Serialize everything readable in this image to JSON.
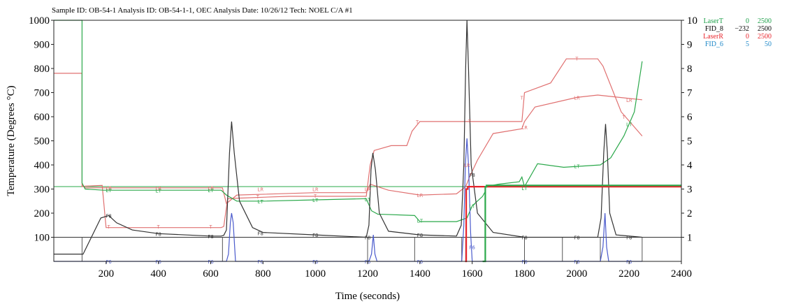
{
  "header": "Sample ID: OB-54-1    Analysis ID: OB-54-1-1, OEC    Analysis Date: 10/26/12    Tech: NOEL    C/A #1",
  "chart_data": {
    "type": "line",
    "xlabel": "Time (seconds)",
    "ylabel": "Temperature (Degrees °C)",
    "xlim": [
      0,
      2400
    ],
    "ylim": [
      0,
      1000
    ],
    "y2lim": [
      0,
      10
    ],
    "x_ticks": [
      200,
      400,
      600,
      800,
      1000,
      1200,
      1400,
      1600,
      1800,
      2000,
      2200,
      2400
    ],
    "y_ticks": [
      100,
      200,
      300,
      400,
      500,
      600,
      700,
      800,
      900,
      1000
    ],
    "y2_ticks": [
      1,
      2,
      3,
      4,
      5,
      6,
      7,
      8,
      9,
      10
    ],
    "grid": false,
    "legend_position": "top-right",
    "legend": [
      {
        "name": "LaserT",
        "min": "0",
        "max": "2500",
        "color": "#1ea04a"
      },
      {
        "name": "FID_8",
        "min": "−232",
        "max": "2500",
        "color": "#000000"
      },
      {
        "name": "LaserR",
        "min": "0",
        "max": "2500",
        "color": "#e8242b"
      },
      {
        "name": "FID_6",
        "min": "5",
        "max": "50",
        "color": "#1e88c8"
      }
    ],
    "series": [
      {
        "name": "T",
        "axis": "left",
        "color": "#e07070",
        "x": [
          0,
          108,
          108,
          120,
          185,
          200,
          640,
          650,
          665,
          700,
          900,
          1195,
          1210,
          1225,
          1290,
          1350,
          1370,
          1400,
          1600,
          1790,
          1800,
          1900,
          1960,
          2080,
          2100,
          2170,
          2250
        ],
        "y": [
          780,
          780,
          310,
          312,
          315,
          140,
          140,
          145,
          260,
          262,
          270,
          270,
          400,
          460,
          480,
          480,
          540,
          580,
          580,
          580,
          700,
          740,
          840,
          840,
          810,
          620,
          520
        ],
        "labels": [
          [
            210,
            145
          ],
          [
            400,
            145
          ],
          [
            600,
            145
          ],
          [
            780,
            270
          ],
          [
            1000,
            272
          ],
          [
            1390,
            580
          ],
          [
            1590,
            582
          ],
          [
            1790,
            680
          ],
          [
            2000,
            842
          ],
          [
            2180,
            600
          ]
        ]
      },
      {
        "name": "LR",
        "axis": "left",
        "color": "#e07070",
        "x": [
          108,
          120,
          190,
          645,
          660,
          700,
          1000,
          1195,
          1210,
          1280,
          1400,
          1540,
          1575,
          1590,
          1620,
          1680,
          1790,
          1800,
          1840,
          2000,
          2080,
          2250
        ],
        "y": [
          315,
          305,
          305,
          305,
          240,
          275,
          285,
          285,
          320,
          295,
          275,
          280,
          310,
          350,
          420,
          530,
          550,
          580,
          640,
          680,
          690,
          670
        ],
        "labels": [
          [
            210,
            306
          ],
          [
            400,
            305
          ],
          [
            600,
            306
          ],
          [
            790,
            300
          ],
          [
            1000,
            300
          ],
          [
            1200,
            300
          ],
          [
            1400,
            275
          ],
          [
            1580,
            400
          ],
          [
            1800,
            557
          ],
          [
            2000,
            680
          ],
          [
            2200,
            670
          ]
        ]
      },
      {
        "name": "LT",
        "axis": "left",
        "color": "#2aa84a",
        "x": [
          0,
          108,
          108,
          120,
          190,
          640,
          660,
          700,
          800,
          1000,
          1195,
          1215,
          1240,
          1260,
          1380,
          1400,
          1540,
          1580,
          1600,
          1640,
          1650,
          1650,
          1700,
          1780,
          1790,
          1800,
          1850,
          1950,
          2090,
          2130,
          2180,
          2220,
          2250
        ],
        "y": [
          1000,
          1000,
          325,
          300,
          295,
          295,
          275,
          250,
          250,
          255,
          260,
          210,
          195,
          195,
          190,
          165,
          165,
          180,
          230,
          270,
          290,
          310,
          320,
          330,
          350,
          310,
          405,
          390,
          400,
          430,
          520,
          620,
          830
        ],
        "labels": [
          [
            210,
            295
          ],
          [
            400,
            294
          ],
          [
            600,
            295
          ],
          [
            790,
            250
          ],
          [
            1000,
            255
          ],
          [
            1200,
            258
          ],
          [
            1400,
            170
          ],
          [
            1600,
            230
          ],
          [
            1800,
            305
          ],
          [
            2000,
            395
          ],
          [
            2200,
            570
          ]
        ]
      },
      {
        "name": "F8",
        "axis": "left",
        "color": "#333333",
        "x": [
          0,
          112,
          180,
          210,
          240,
          300,
          400,
          600,
          640,
          650,
          660,
          672,
          680,
          690,
          710,
          760,
          800,
          1000,
          1195,
          1205,
          1213,
          1220,
          1230,
          1245,
          1280,
          1400,
          1540,
          1558,
          1568,
          1575,
          1580,
          1586,
          1596,
          1620,
          1680,
          1800,
          2080,
          2093,
          2103,
          2110,
          2117,
          2126,
          2150,
          2250
        ],
        "y": [
          30,
          30,
          180,
          190,
          160,
          130,
          115,
          105,
          105,
          108,
          130,
          450,
          580,
          450,
          250,
          140,
          120,
          110,
          100,
          150,
          380,
          450,
          380,
          200,
          125,
          110,
          105,
          150,
          400,
          800,
          1000,
          800,
          400,
          200,
          120,
          100,
          100,
          180,
          450,
          570,
          450,
          200,
          110,
          100
        ],
        "labels": [
          [
            210,
            190
          ],
          [
            400,
            115
          ],
          [
            600,
            105
          ],
          [
            790,
            118
          ],
          [
            1000,
            110
          ],
          [
            1200,
            100
          ],
          [
            1400,
            110
          ],
          [
            1600,
            360
          ],
          [
            1800,
            100
          ],
          [
            2000,
            100
          ],
          [
            2200,
            100
          ]
        ]
      },
      {
        "name": "F6",
        "axis": "left",
        "color": "#4a5acc",
        "x": [
          0,
          660,
          668,
          675,
          680,
          686,
          695,
          1205,
          1215,
          1222,
          1228,
          1236,
          1560,
          1568,
          1574,
          1580,
          1586,
          1594,
          1600,
          2090,
          2100,
          2108,
          2114,
          2122,
          2250
        ],
        "y": [
          0,
          0,
          30,
          160,
          200,
          160,
          0,
          0,
          30,
          110,
          30,
          0,
          0,
          150,
          400,
          510,
          400,
          120,
          0,
          0,
          60,
          200,
          60,
          0,
          0
        ],
        "labels": [
          [
            210,
            0
          ],
          [
            400,
            0
          ],
          [
            600,
            0
          ],
          [
            790,
            0
          ],
          [
            1000,
            0
          ],
          [
            1200,
            0
          ],
          [
            1400,
            0
          ],
          [
            1600,
            60
          ],
          [
            1800,
            0
          ],
          [
            2000,
            0
          ],
          [
            2200,
            0
          ]
        ]
      },
      {
        "name": "LaserR",
        "axis": "left",
        "color": "#e8242b",
        "x": [
          1573,
          1577,
          1577,
          1583,
          1583,
          1600,
          2400
        ],
        "y": [
          0,
          0,
          300,
          300,
          310,
          310,
          310
        ]
      },
      {
        "name": "LaserT",
        "axis": "left",
        "color": "#2aa84a",
        "x": [
          1640,
          1650,
          1650,
          1655,
          1655,
          2400
        ],
        "y": [
          0,
          0,
          310,
          310,
          315,
          315
        ]
      }
    ],
    "reference_lines": [
      {
        "y": 100,
        "color": "#333333"
      },
      {
        "y": 310,
        "color": "#2aa84a"
      }
    ],
    "segment_markers": [
      {
        "x": 108
      },
      {
        "x": 645
      },
      {
        "x": 1200
      },
      {
        "x": 1380
      },
      {
        "x": 1560
      },
      {
        "x": 1575
      },
      {
        "x": 1800
      },
      {
        "x": 1945
      },
      {
        "x": 2090
      },
      {
        "x": 2250
      }
    ]
  }
}
